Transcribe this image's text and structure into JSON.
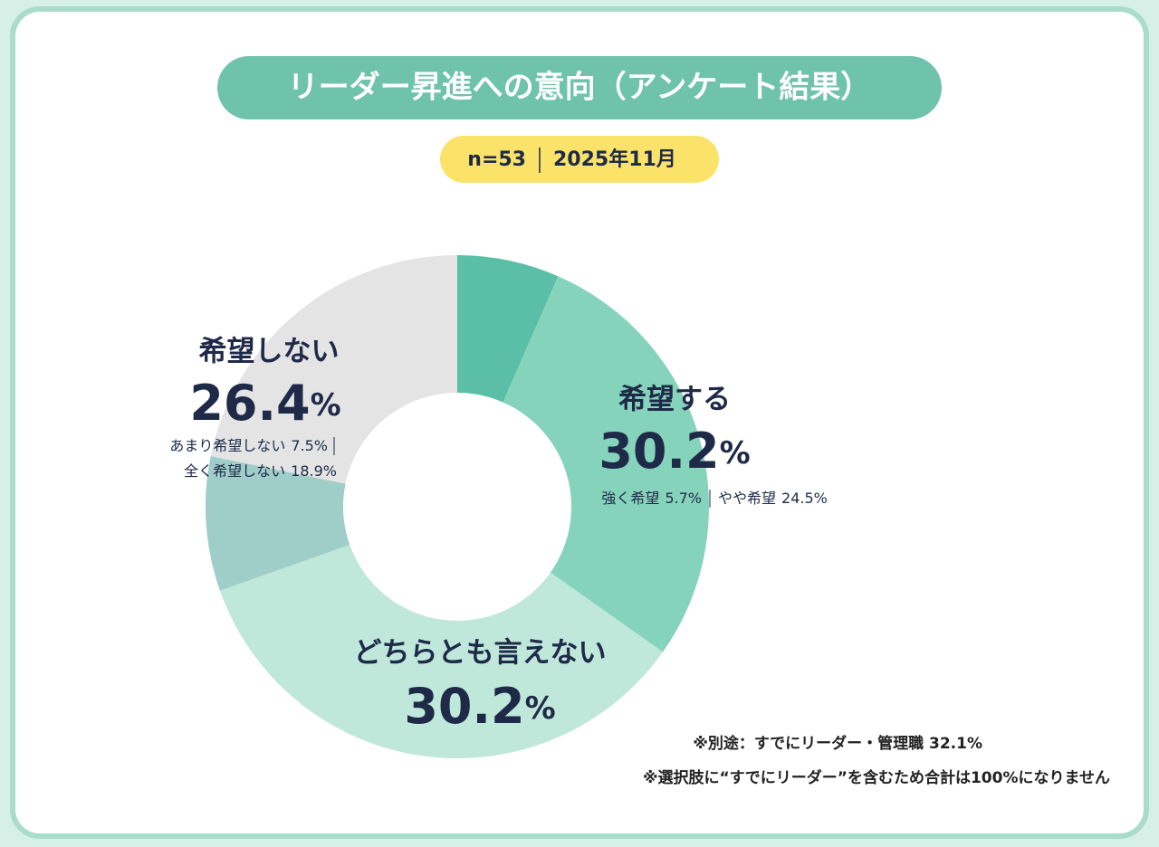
{
  "chart_data": {
    "type": "donut",
    "title": "リーダー昇進への意向（アンケート結果）",
    "sample": "n=53",
    "date": "2025年11月",
    "categories": [
      "強く希望",
      "やや希望",
      "どちらとも言えない",
      "あまり希望しない",
      "全く希望しない"
    ],
    "values": [
      5.7,
      24.5,
      30.2,
      7.5,
      18.9
    ],
    "value_labels": [
      "5.7%",
      "24.5%",
      "30.2%",
      "7.5%",
      "18.9%"
    ],
    "colors": [
      "#5bbfa8",
      "#86d3bb",
      "#bfe8da",
      "#9fcdc8",
      "#e4e4e4"
    ],
    "groups": [
      {
        "name": "希望する",
        "value": 30.2,
        "value_label": "30.2%"
      },
      {
        "name": "希望しない",
        "value": 26.4,
        "value_label": "26.4%"
      }
    ],
    "notes": [
      "※別途：すでにリーダー・管理職 32.1%",
      "※選択肢に“すでにリーダー”を含むため合計は100%になりません"
    ]
  }
}
